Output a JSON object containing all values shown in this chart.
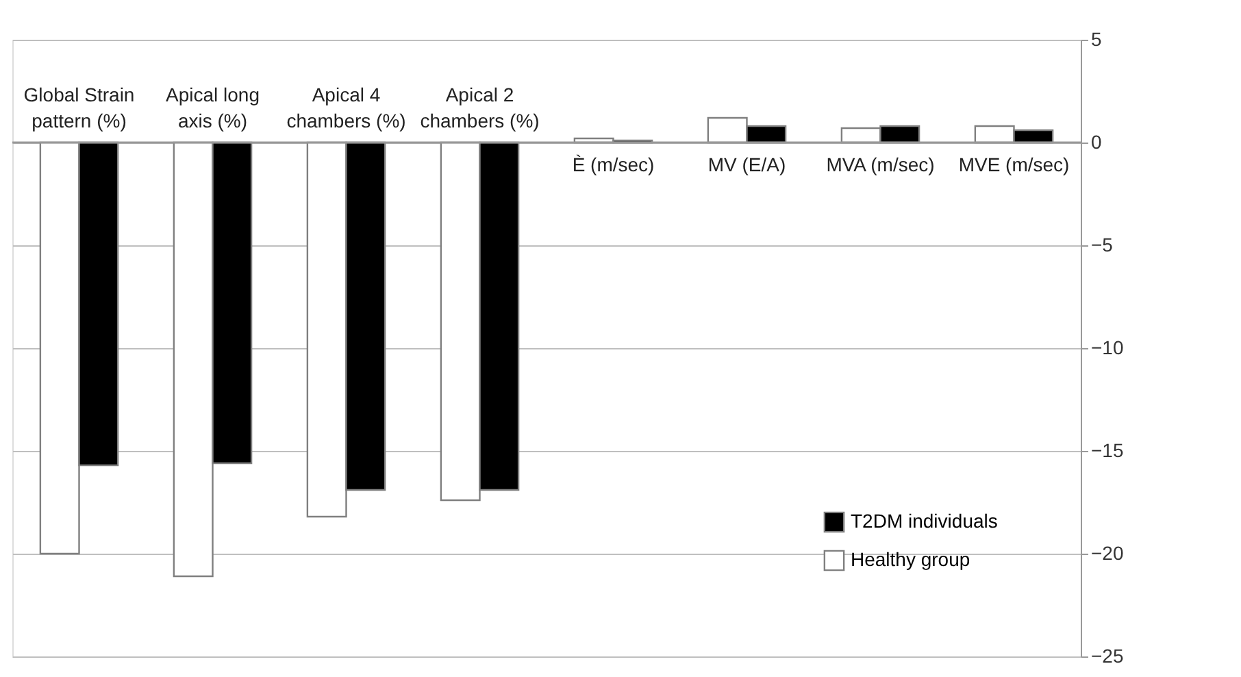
{
  "chart_data": {
    "type": "bar",
    "categories": [
      "Global Strain pattern (%)",
      "Apical long axis (%)",
      "Apical 4 chambers (%)",
      "Apical 2 chambers (%)",
      "È (m/sec)",
      "MV (E/A)",
      "MVA (m/sec)",
      "MVE (m/sec)"
    ],
    "series": [
      {
        "name": "Healthy group",
        "color": "#ffffff",
        "values": [
          -20,
          -21.1,
          -18.2,
          -17.4,
          0.2,
          1.2,
          0.7,
          0.8
        ]
      },
      {
        "name": "T2DM individuals",
        "color": "#000000",
        "values": [
          -15.7,
          -15.6,
          -16.9,
          -16.9,
          0.1,
          0.8,
          0.8,
          0.6
        ]
      }
    ],
    "ylim": [
      -25,
      5
    ],
    "yticks": [
      -25,
      -20,
      -15,
      -10,
      -5,
      0,
      5
    ],
    "grid": "y",
    "legend": "bottom right"
  }
}
